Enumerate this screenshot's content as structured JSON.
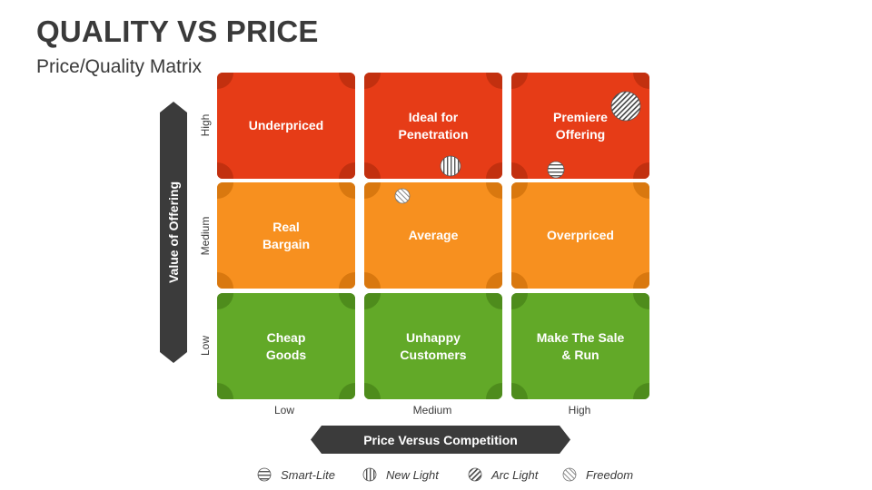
{
  "title": "QUALITY VS PRICE",
  "subtitle": "Price/Quality Matrix",
  "y_axis": {
    "label": "Value of Offering",
    "levels": [
      "High",
      "Medium",
      "Low"
    ]
  },
  "x_axis": {
    "label": "Price Versus Competition",
    "levels": [
      "Low",
      "Medium",
      "High"
    ]
  },
  "cells": [
    {
      "text": "Underpriced",
      "color": "#e63c17"
    },
    {
      "text": "Ideal for\nPenetration",
      "color": "#e63c17"
    },
    {
      "text": "Premiere\nOffering",
      "color": "#e63c17"
    },
    {
      "text": "Real\nBargain",
      "color": "#f7901f"
    },
    {
      "text": "Average",
      "color": "#f7901f"
    },
    {
      "text": "Overpriced",
      "color": "#f7901f"
    },
    {
      "text": "Cheap\nGoods",
      "color": "#62a928"
    },
    {
      "text": "Unhappy\nCustomers",
      "color": "#62a928"
    },
    {
      "text": "Make The Sale\n& Run",
      "color": "#62a928"
    }
  ],
  "legend": [
    {
      "label": "Smart-Lite",
      "icon": "horizontal-stripes-icon"
    },
    {
      "label": "New Light",
      "icon": "vertical-stripes-icon"
    },
    {
      "label": "Arc Light",
      "icon": "diagonal-stripes-icon"
    },
    {
      "label": "Freedom",
      "icon": "diagonal-stripes-light-icon"
    }
  ],
  "placements": [
    {
      "product": "Smart-Lite",
      "cell": "High value / High price"
    },
    {
      "product": "New Light",
      "cell": "High value / Medium price"
    },
    {
      "product": "Arc Light",
      "cell": "High value / High price"
    },
    {
      "product": "Freedom",
      "cell": "Medium value / Medium price"
    }
  ]
}
